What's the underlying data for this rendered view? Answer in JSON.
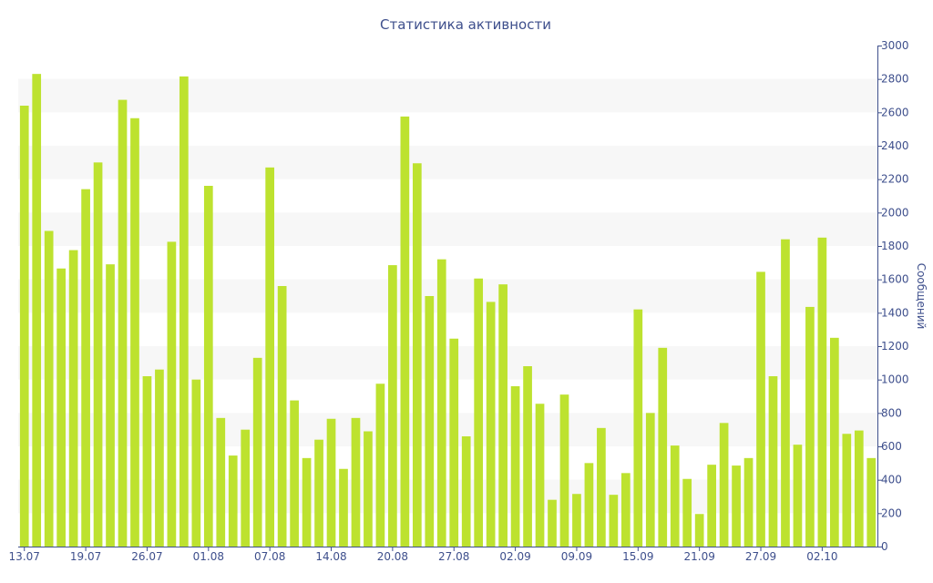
{
  "chart_data": {
    "type": "bar",
    "title": "Статистика активности",
    "xlabel": "",
    "ylabel": "Сообщений",
    "ylim": [
      0,
      3000
    ],
    "yticks": [
      0,
      200,
      400,
      600,
      800,
      1000,
      1200,
      1400,
      1600,
      1800,
      2000,
      2200,
      2400,
      2600,
      2800,
      3000
    ],
    "y_axis_side": "right",
    "grid": "alternating horizontal bands",
    "bar_color": "#bde22f",
    "axis_color": "#3e4f8c",
    "band_color": "#f7f7f7",
    "xtick_labels": [
      {
        "index": 0,
        "label": "13.07"
      },
      {
        "index": 5,
        "label": "19.07"
      },
      {
        "index": 10,
        "label": "26.07"
      },
      {
        "index": 15,
        "label": "01.08"
      },
      {
        "index": 20,
        "label": "07.08"
      },
      {
        "index": 25,
        "label": "14.08"
      },
      {
        "index": 30,
        "label": "20.08"
      },
      {
        "index": 35,
        "label": "27.08"
      },
      {
        "index": 40,
        "label": "02.09"
      },
      {
        "index": 45,
        "label": "09.09"
      },
      {
        "index": 50,
        "label": "15.09"
      },
      {
        "index": 55,
        "label": "21.09"
      },
      {
        "index": 60,
        "label": "27.09"
      },
      {
        "index": 65,
        "label": "02.10"
      }
    ],
    "values": [
      2640,
      2830,
      1890,
      1665,
      1775,
      2140,
      2300,
      1690,
      2675,
      2565,
      1020,
      1060,
      1825,
      2815,
      1000,
      2160,
      770,
      545,
      700,
      1130,
      2270,
      1560,
      875,
      530,
      640,
      765,
      465,
      770,
      690,
      975,
      1685,
      2575,
      2295,
      1500,
      1720,
      1245,
      660,
      1605,
      1465,
      1570,
      960,
      1080,
      855,
      280,
      910,
      315,
      500,
      710,
      310,
      440,
      1420,
      800,
      1190,
      605,
      405,
      195,
      490,
      740,
      485,
      530,
      1645,
      1020,
      1840,
      610,
      1435,
      1850,
      1250,
      675,
      695,
      530
    ]
  }
}
